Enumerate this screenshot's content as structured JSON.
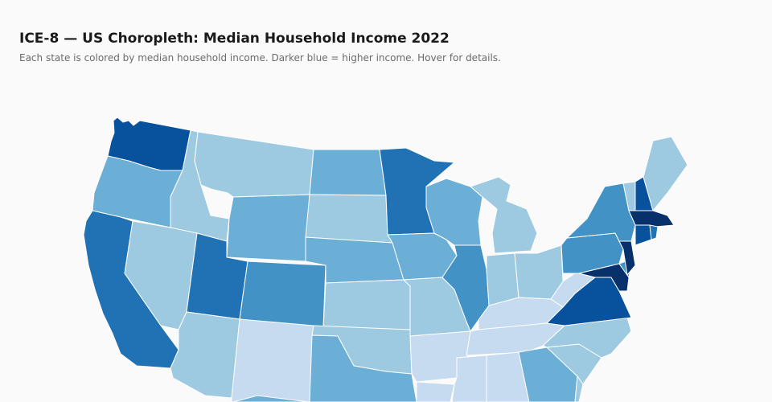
{
  "header": {
    "title": "ICE-8 — US Choropleth: Median Household Income 2022",
    "subtitle": "Each state is colored by median household income. Darker blue = higher income. Hover for details."
  },
  "colors": {
    "background": "#fafafa",
    "stroke": "#ffffff",
    "scale": [
      "#c6dbef",
      "#9ecae1",
      "#6baed6",
      "#4292c6",
      "#2171b5",
      "#08519c",
      "#08306b"
    ]
  },
  "states": [
    {
      "id": "WA",
      "level": 5
    },
    {
      "id": "OR",
      "level": 2
    },
    {
      "id": "CA",
      "level": 4
    },
    {
      "id": "ID",
      "level": 1
    },
    {
      "id": "NV",
      "level": 1
    },
    {
      "id": "MT",
      "level": 1
    },
    {
      "id": "WY",
      "level": 2
    },
    {
      "id": "UT",
      "level": 4
    },
    {
      "id": "AZ",
      "level": 1
    },
    {
      "id": "CO",
      "level": 3
    },
    {
      "id": "NM",
      "level": 0
    },
    {
      "id": "ND",
      "level": 2
    },
    {
      "id": "SD",
      "level": 1
    },
    {
      "id": "NE",
      "level": 2
    },
    {
      "id": "KS",
      "level": 1
    },
    {
      "id": "OK",
      "level": 1
    },
    {
      "id": "TX",
      "level": 2
    },
    {
      "id": "MN",
      "level": 4
    },
    {
      "id": "IA",
      "level": 2
    },
    {
      "id": "MO",
      "level": 1
    },
    {
      "id": "AR",
      "level": 0
    },
    {
      "id": "LA",
      "level": 0
    },
    {
      "id": "WI",
      "level": 2
    },
    {
      "id": "IL",
      "level": 3
    },
    {
      "id": "MI",
      "level": 1
    },
    {
      "id": "IN",
      "level": 1
    },
    {
      "id": "OH",
      "level": 1
    },
    {
      "id": "KY",
      "level": 0
    },
    {
      "id": "TN",
      "level": 0
    },
    {
      "id": "MS",
      "level": 0
    },
    {
      "id": "AL",
      "level": 0
    },
    {
      "id": "GA",
      "level": 2
    },
    {
      "id": "FL",
      "level": 1
    },
    {
      "id": "SC",
      "level": 1
    },
    {
      "id": "NC",
      "level": 1
    },
    {
      "id": "VA",
      "level": 5
    },
    {
      "id": "WV",
      "level": 0
    },
    {
      "id": "PA",
      "level": 3
    },
    {
      "id": "NY",
      "level": 3
    },
    {
      "id": "VT",
      "level": 1
    },
    {
      "id": "NH",
      "level": 5
    },
    {
      "id": "ME",
      "level": 1
    },
    {
      "id": "MA",
      "level": 6
    },
    {
      "id": "RI",
      "level": 4
    },
    {
      "id": "CT",
      "level": 5
    },
    {
      "id": "NJ",
      "level": 6
    },
    {
      "id": "DE",
      "level": 3
    },
    {
      "id": "MD",
      "level": 6
    }
  ]
}
